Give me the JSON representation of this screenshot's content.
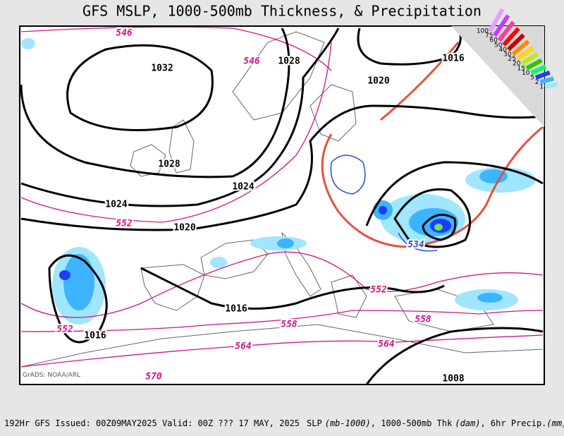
{
  "title": "GFS MSLP, 1000-500mb Thickness, & Precipitation",
  "legend": [
    "100",
    "75",
    "60",
    "50",
    "40",
    "30",
    "25",
    "20",
    "15",
    "10",
    "5",
    "2",
    "1"
  ],
  "pressure_labels": [
    "1032",
    "1028",
    "1020",
    "1016",
    "1028",
    "1024",
    "1024",
    "1020",
    "1016",
    "1016",
    "1008"
  ],
  "thickness_labels": [
    "546",
    "546",
    "552",
    "552",
    "558",
    "558",
    "552",
    "564",
    "564",
    "570"
  ],
  "cold_thickness_label": "534",
  "credit": "GrADS: NOAA/ARL",
  "footer": {
    "run": "192Hr GFS Issued: 00Z09MAY2025 Valid: 00Z ??? 17 MAY, 2025",
    "slp": "SLP",
    "slp_unit": "(mb-1000)",
    "thk": ", 1000-500mb Thk",
    "thk_unit": "(dam)",
    "precip": ", 6hr Precip.",
    "precip_unit": "(mm)"
  }
}
